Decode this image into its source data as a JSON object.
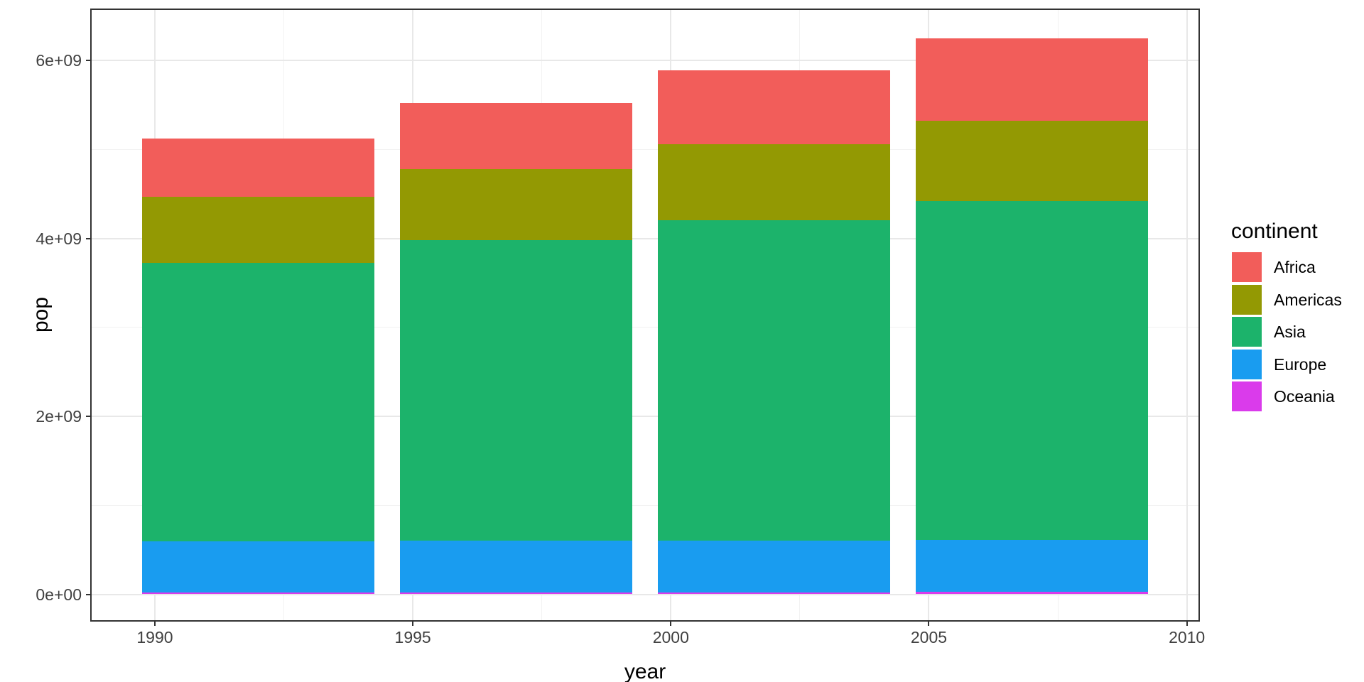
{
  "chart_data": {
    "type": "bar",
    "stacked": true,
    "title": "",
    "xlabel": "year",
    "ylabel": "pop",
    "categories": [
      1992,
      1997,
      2002,
      2007
    ],
    "series": [
      {
        "name": "Africa",
        "color": "#F25D5A",
        "values": [
          659081517,
          743832984,
          833723916,
          929539692
        ]
      },
      {
        "name": "Americas",
        "color": "#939903",
        "values": [
          739274104,
          796900410,
          849772762,
          898871184
        ]
      },
      {
        "name": "Asia",
        "color": "#1CB36B",
        "values": [
          3133292191,
          3383285500,
          3601802203,
          3811953827
        ]
      },
      {
        "name": "Europe",
        "color": "#199CF0",
        "values": [
          572303618,
          578865846,
          582709915,
          586098529
        ]
      },
      {
        "name": "Oceania",
        "color": "#DA3BEB",
        "values": [
          20919651,
          22241430,
          23454829,
          24549947
        ]
      }
    ],
    "stack_order": "first_series_on_top",
    "bar_width_years": 4.5,
    "legend": {
      "title": "continent",
      "position": "right",
      "entries": [
        "Africa",
        "Americas",
        "Asia",
        "Europe",
        "Oceania"
      ]
    },
    "x_ticks": [
      {
        "value": 1990,
        "label": "1990"
      },
      {
        "value": 1995,
        "label": "1995"
      },
      {
        "value": 2000,
        "label": "2000"
      },
      {
        "value": 2005,
        "label": "2005"
      },
      {
        "value": 2010,
        "label": "2010"
      }
    ],
    "y_ticks": [
      {
        "value": 0,
        "label": "0e+00"
      },
      {
        "value": 2000000000,
        "label": "2e+09"
      },
      {
        "value": 4000000000,
        "label": "4e+09"
      },
      {
        "value": 6000000000,
        "label": "6e+09"
      }
    ],
    "x_minor_gridlines": [
      1992.5,
      1997.5,
      2002.5,
      2007.5
    ],
    "y_minor_gridlines": [
      1000000000,
      3000000000,
      5000000000
    ],
    "x_domain": [
      1988.775,
      2010.225
    ],
    "y_domain": [
      -291500000,
      6569000000
    ],
    "grid": true,
    "colors": {
      "panel_border": "#333333",
      "grid_major": "#e8e8e8",
      "grid_minor": "#f2f2f2",
      "tick_label": "#404040",
      "axis_title": "#000000",
      "background": "#ffffff"
    }
  }
}
